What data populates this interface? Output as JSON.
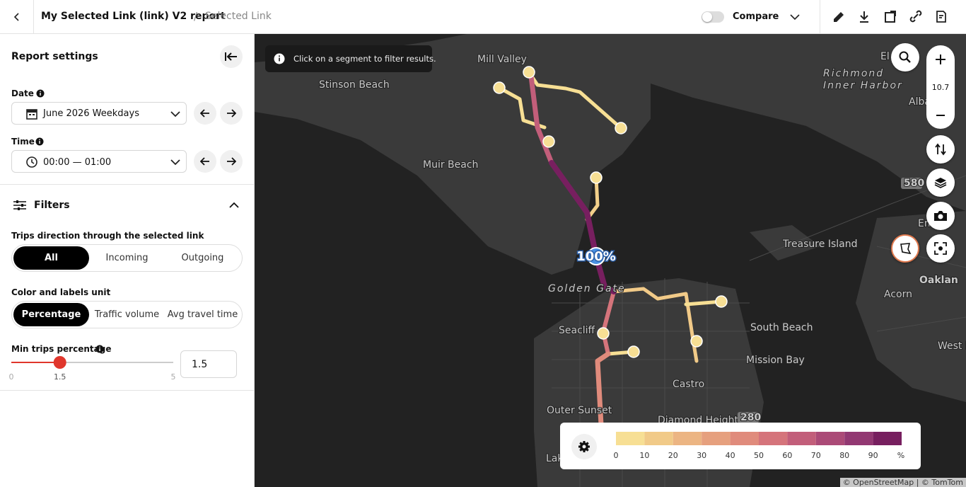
{
  "header": {
    "title": "My Selected Link (link) V2 report",
    "separator": "/",
    "breadcrumb": "Selected Link",
    "compare": "Compare"
  },
  "sidebar": {
    "title": "Report settings",
    "date_label": "Date",
    "date_value": "June 2026 Weekdays",
    "time_label": "Time",
    "time_value": "00:00 — 01:00",
    "filters_title": "Filters",
    "direction_label": "Trips direction through the selected link",
    "direction_options": [
      "All",
      "Incoming",
      "Outgoing"
    ],
    "direction_selected": 0,
    "unit_label": "Color and labels unit",
    "unit_options": [
      "Percentage",
      "Traffic volume",
      "Avg travel time"
    ],
    "unit_selected": 0,
    "min_trips_label": "Min trips percentage",
    "slider": {
      "min": 0,
      "value": 1.5,
      "max": 5
    },
    "input_value": "1.5"
  },
  "map": {
    "hint": "Click on a segment to filter results.",
    "zoom": "10.7",
    "places": [
      "Mill Valley",
      "Stinson Beach",
      "Muir Beach",
      "Richmond",
      "Inner Harbor",
      "El C",
      "Albany",
      "580",
      "Emery",
      "Treasure Island",
      "Oaklan",
      "Acorn",
      "Golden Gate",
      "Seacliff",
      "South Beach",
      "Mission Bay",
      "West End",
      "Castro",
      "Outer Sunset",
      "Diamond Heights",
      "280",
      "Lakesh"
    ],
    "selected_label": "100%",
    "legend": {
      "ticks": [
        0,
        10,
        20,
        30,
        40,
        50,
        60,
        70,
        80,
        90
      ],
      "unit": "%",
      "colors": [
        "#f7df94",
        "#f1ca88",
        "#ecb583",
        "#e6a07e",
        "#e08b7c",
        "#d5747b",
        "#c25e7a",
        "#ab4a77",
        "#923872",
        "#771f5f"
      ]
    },
    "attribution": "© OpenStreetMap | © TomTom"
  }
}
